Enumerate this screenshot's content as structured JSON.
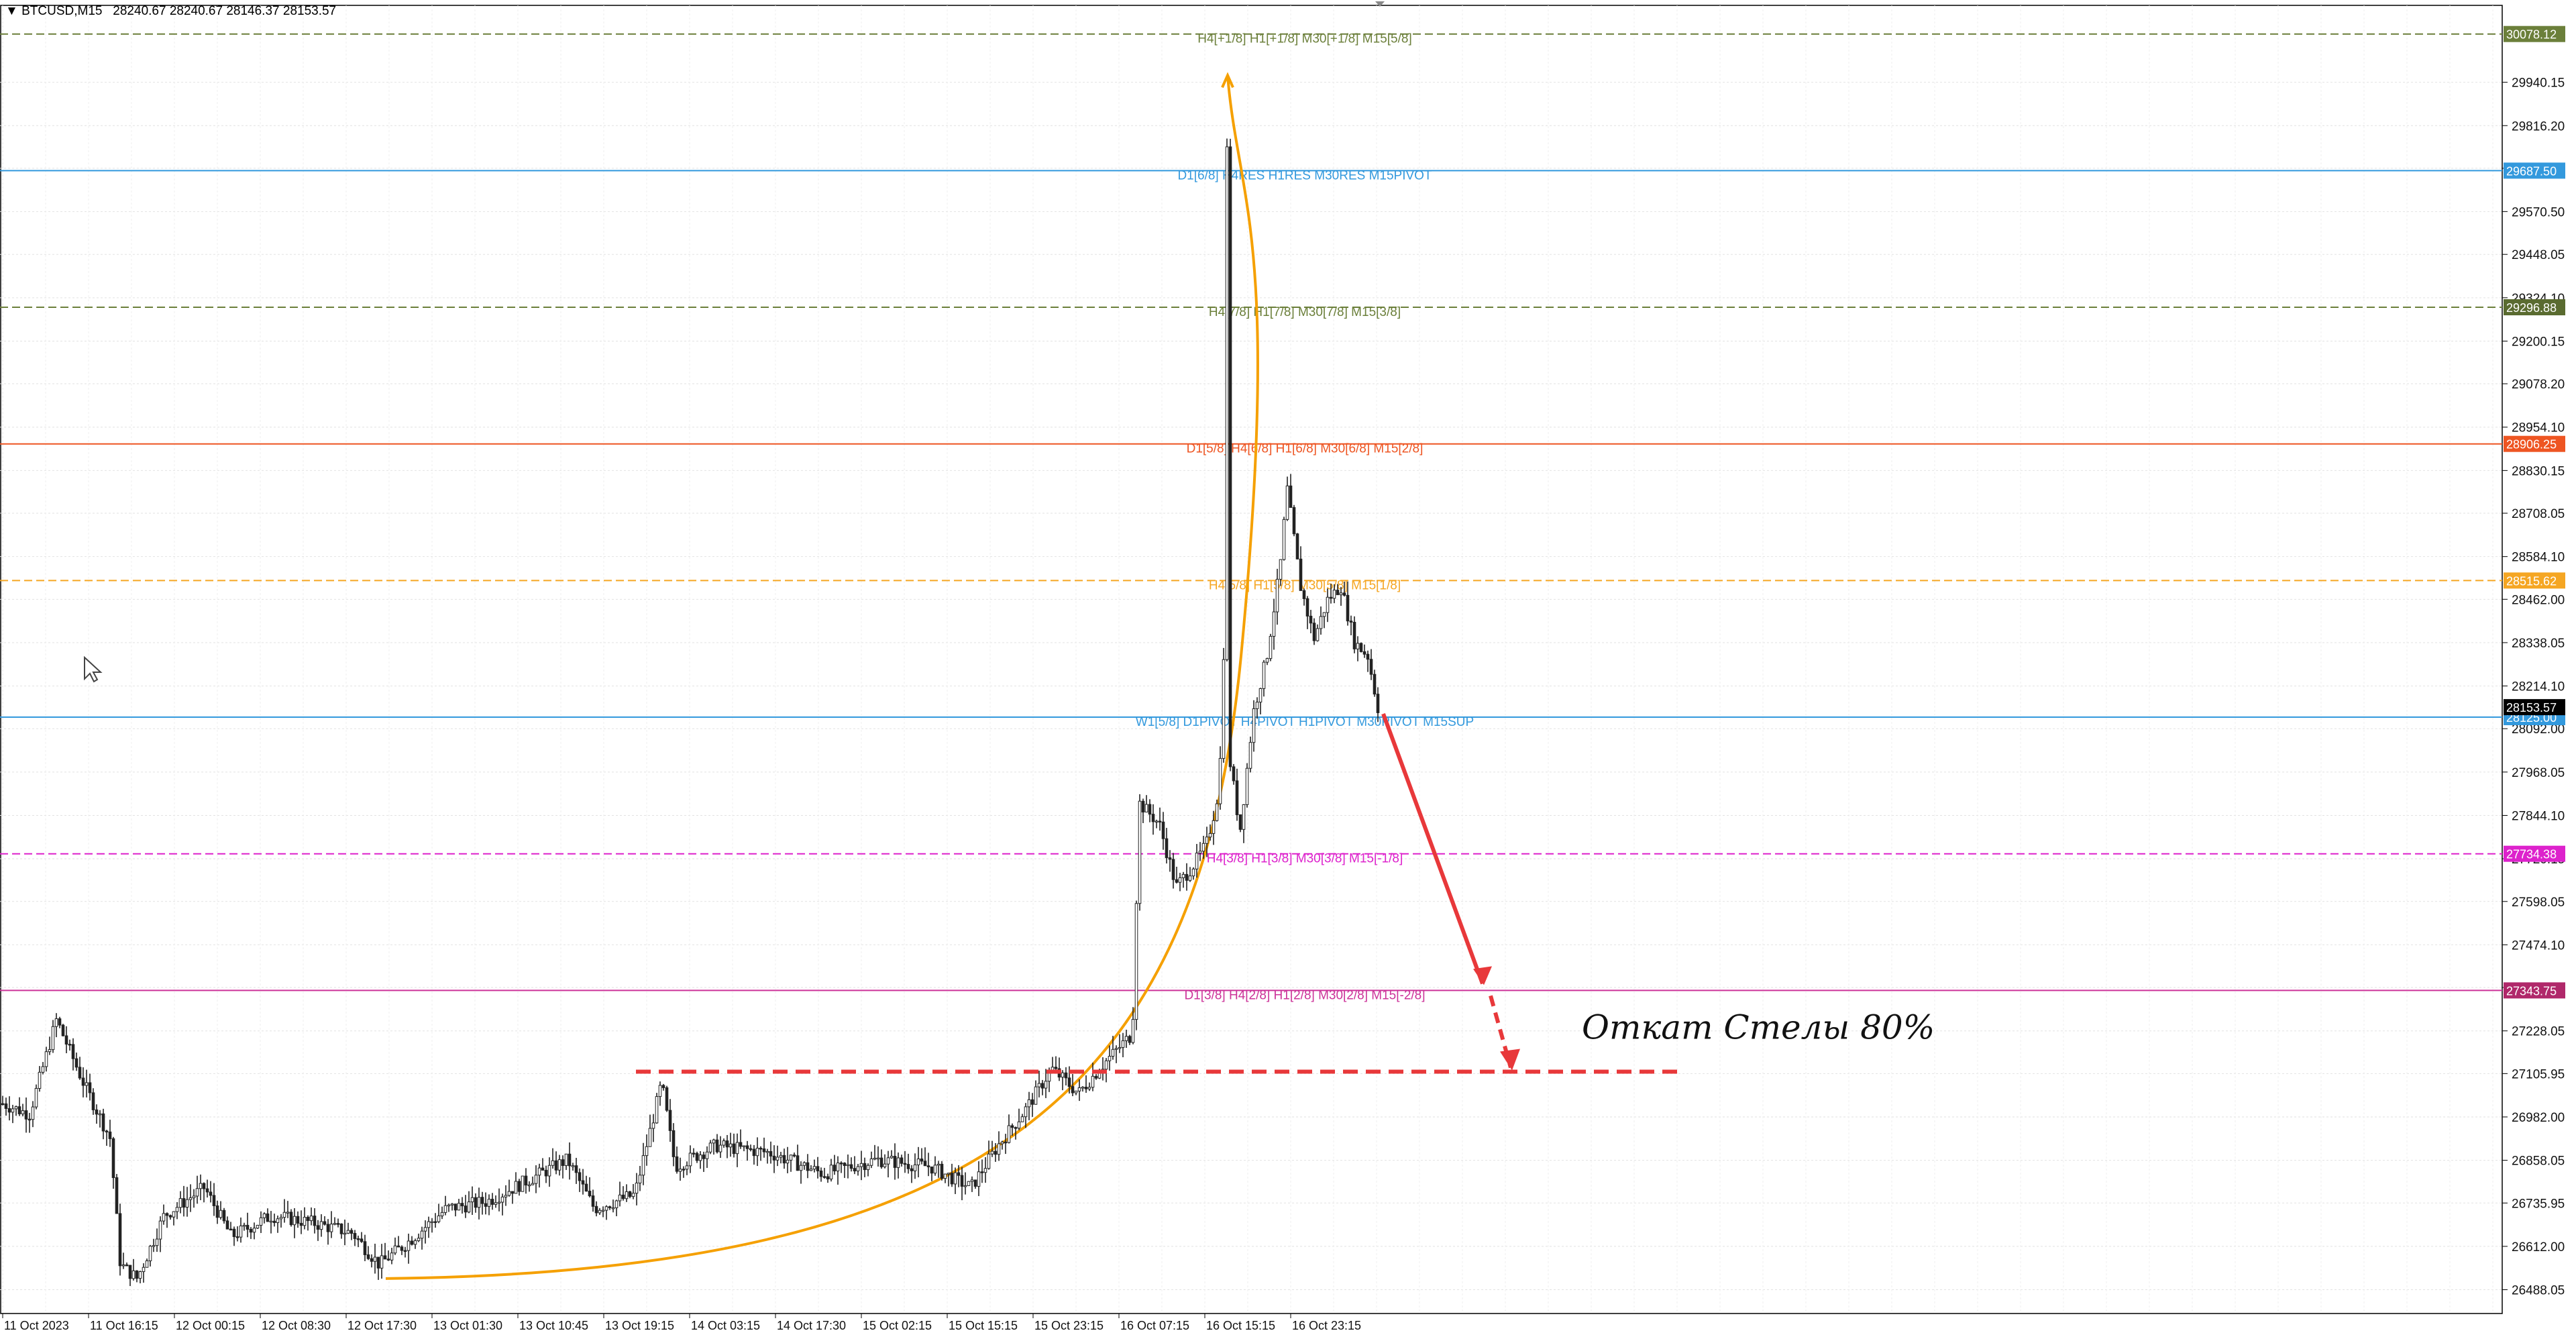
{
  "ticker": {
    "symbol": "BTCUSD,M15",
    "ohlc": "28240.67 28240.67 28146.37 28153.57"
  },
  "annotation": {
    "text": "Откат Стелы 80%",
    "color": "#e8383a"
  },
  "chart_data": {
    "type": "candlestick",
    "price_axis": {
      "range": [
        26420,
        30160
      ],
      "ticks": [
        29940.15,
        29816.2,
        29694.25,
        29570.5,
        29448.05,
        29324.1,
        29200.15,
        29078.2,
        28954.1,
        28830.15,
        28708.05,
        28584.1,
        28462.0,
        28338.05,
        28214.1,
        28092.0,
        27968.05,
        27844.1,
        27720.15,
        27598.05,
        27474.1,
        27352.15,
        27228.05,
        27105.95,
        26982.0,
        26858.05,
        26735.95,
        26612.0,
        26488.05
      ],
      "position": "right"
    },
    "time_axis": {
      "labels": [
        "11 Oct 2023",
        "11 Oct 16:15",
        "12 Oct 00:15",
        "12 Oct 08:30",
        "12 Oct 17:30",
        "13 Oct 01:30",
        "13 Oct 10:45",
        "13 Oct 19:15",
        "14 Oct 03:15",
        "14 Oct 17:30",
        "15 Oct 02:15",
        "15 Oct 15:15",
        "15 Oct 23:15",
        "16 Oct 07:15",
        "16 Oct 15:15",
        "16 Oct 23:15"
      ]
    },
    "grid": true,
    "levels": [
      {
        "price": 30078.12,
        "tag": "30078.12",
        "label": "H4[+1/8] H1[+1/8] M30[+1/8] M15[5/8]",
        "color": "#6b7f3a",
        "tag_bg": "#6b7f3a",
        "dashed": true
      },
      {
        "price": 29687.5,
        "tag": "29687.50",
        "label": "D1[6/8] H4RES H1RES M30RES M15PIVOT",
        "color": "#3399dd",
        "tag_bg": "#3399dd",
        "dashed": false
      },
      {
        "price": 29296.88,
        "tag": "29296.88",
        "label": "H4[7/8] H1[7/8] M30[7/8] M15[3/8]",
        "color": "#6b7f3a",
        "tag_bg": "#5a6b30",
        "dashed": true
      },
      {
        "price": 28906.25,
        "tag": "28906.25",
        "label": "D1[5/8] H4[6/8] H1[6/8] M30[6/8] M15[2/8]",
        "color": "#ee5522",
        "tag_bg": "#ee5522",
        "dashed": false
      },
      {
        "price": 28515.62,
        "tag": "28515.62",
        "label": "H4[5/8] H1[5/8] M30[5/8] M15[1/8]",
        "color": "#f5a623",
        "tag_bg": "#f5a623",
        "dashed": true
      },
      {
        "price": 28125.0,
        "tag": "28125.00",
        "label": "W1[5/8] D1PIVOT H4PIVOT H1PIVOT M30PIVOT M15SUP",
        "color": "#3399dd",
        "tag_bg": "#3399dd",
        "dashed": false
      },
      {
        "price": 27734.38,
        "tag": "27734.38",
        "label": "H4[3/8] H1[3/8] M30[3/8] M15[-1/8]",
        "color": "#dd22cc",
        "tag_bg": "#dd22cc",
        "dashed": true
      },
      {
        "price": 27343.75,
        "tag": "27343.75",
        "label": "D1[3/8] H4[2/8] H1[2/8] M30[2/8] M15[-2/8]",
        "color": "#cc3399",
        "tag_bg": "#b0286a",
        "dashed": false
      }
    ],
    "current_price": {
      "price": 28153.57,
      "tag": "28153.57"
    },
    "price_path": [
      [
        0,
        27020
      ],
      [
        40,
        26990
      ],
      [
        80,
        27260
      ],
      [
        120,
        27080
      ],
      [
        160,
        26920
      ],
      [
        175,
        26560
      ],
      [
        200,
        26520
      ],
      [
        240,
        26700
      ],
      [
        300,
        26780
      ],
      [
        340,
        26640
      ],
      [
        400,
        26700
      ],
      [
        460,
        26680
      ],
      [
        520,
        26650
      ],
      [
        560,
        26560
      ],
      [
        600,
        26620
      ],
      [
        660,
        26720
      ],
      [
        720,
        26740
      ],
      [
        780,
        26800
      ],
      [
        840,
        26860
      ],
      [
        880,
        26720
      ],
      [
        940,
        26760
      ],
      [
        980,
        27080
      ],
      [
        1000,
        26840
      ],
      [
        1060,
        26900
      ],
      [
        1140,
        26880
      ],
      [
        1220,
        26820
      ],
      [
        1300,
        26860
      ],
      [
        1380,
        26840
      ],
      [
        1440,
        26780
      ],
      [
        1480,
        26900
      ],
      [
        1520,
        27000
      ],
      [
        1560,
        27120
      ],
      [
        1600,
        27050
      ],
      [
        1640,
        27140
      ],
      [
        1680,
        27220
      ],
      [
        1690,
        27880
      ],
      [
        1720,
        27820
      ],
      [
        1745,
        27640
      ],
      [
        1770,
        27700
      ],
      [
        1790,
        27760
      ],
      [
        1805,
        27880
      ],
      [
        1815,
        28100
      ],
      [
        1820,
        29960
      ],
      [
        1825,
        28000
      ],
      [
        1840,
        27800
      ],
      [
        1860,
        28140
      ],
      [
        1880,
        28300
      ],
      [
        1900,
        28560
      ],
      [
        1910,
        28780
      ],
      [
        1930,
        28500
      ],
      [
        1950,
        28350
      ],
      [
        1970,
        28460
      ],
      [
        1990,
        28500
      ],
      [
        2010,
        28340
      ],
      [
        2030,
        28300
      ],
      [
        2045,
        28153
      ]
    ],
    "curve": {
      "color": "#f5a000",
      "start_price": 26520,
      "end_price": 29960
    },
    "target": {
      "price": 27100,
      "arrow_color": "#e8383a"
    }
  }
}
